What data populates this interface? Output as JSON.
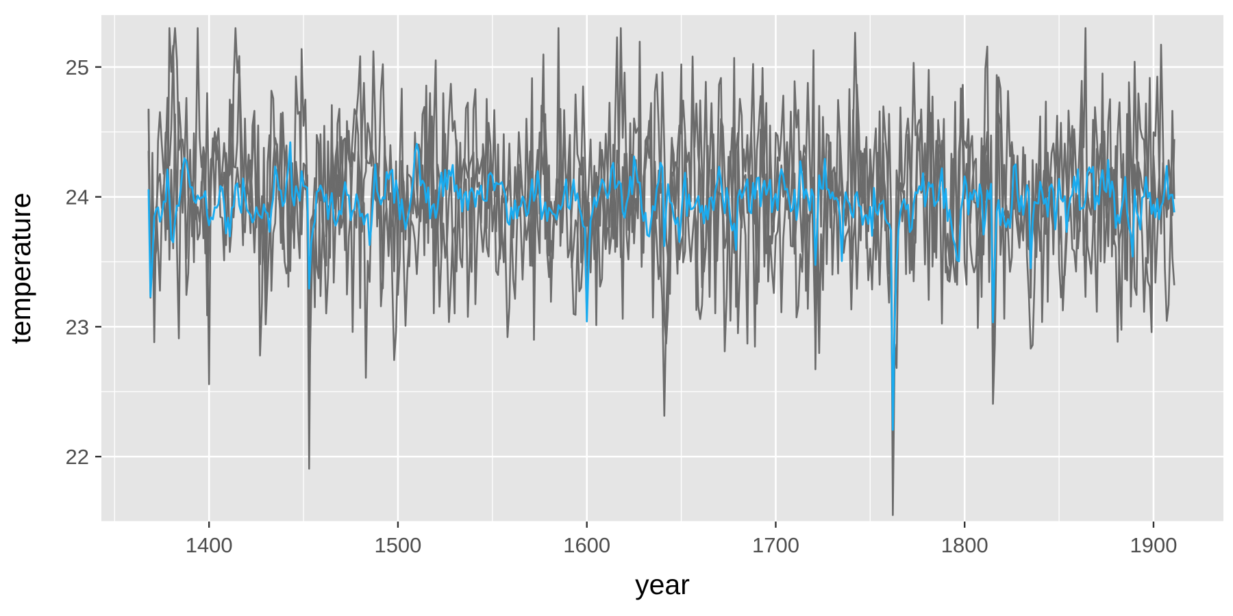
{
  "chart_data": {
    "type": "line",
    "title": "",
    "xlabel": "year",
    "ylabel": "temperature",
    "xlim": [
      1343,
      1937
    ],
    "ylim": [
      21.5,
      25.4
    ],
    "x_ticks": [
      1400,
      1500,
      1600,
      1700,
      1800,
      1900
    ],
    "x_tick_labels": [
      "1400",
      "1500",
      "1600",
      "1700",
      "1800",
      "1900"
    ],
    "y_ticks": [
      22,
      23,
      24,
      25
    ],
    "y_tick_labels": [
      "22",
      "23",
      "24",
      "25"
    ],
    "grid": true,
    "legend": "none",
    "colors": {
      "panel": "#e5e5e5",
      "grid": "#ffffff",
      "ensemble": "#6b6b6b",
      "mean": "#1aabef",
      "tick": "#4d4d4d",
      "text": "#000000"
    },
    "series": [
      {
        "role": "ensemble",
        "count": 3,
        "x_start": 1368,
        "x_end": 1911,
        "baseline": 24.0,
        "spread": 0.85
      },
      {
        "role": "mean",
        "x_start": 1368,
        "x_end": 1911,
        "baseline": 24.0,
        "spread": 0.18
      }
    ],
    "events": [
      {
        "year": 1369,
        "dip": 0.9
      },
      {
        "year": 1453,
        "dip": 1.2
      },
      {
        "year": 1600,
        "dip": 0.9
      },
      {
        "year": 1641,
        "dip": 0.7
      },
      {
        "year": 1721,
        "dip": 0.5
      },
      {
        "year": 1762,
        "dip": 1.9
      },
      {
        "year": 1815,
        "dip": 1.25
      },
      {
        "year": 1835,
        "dip": 0.8
      }
    ]
  }
}
